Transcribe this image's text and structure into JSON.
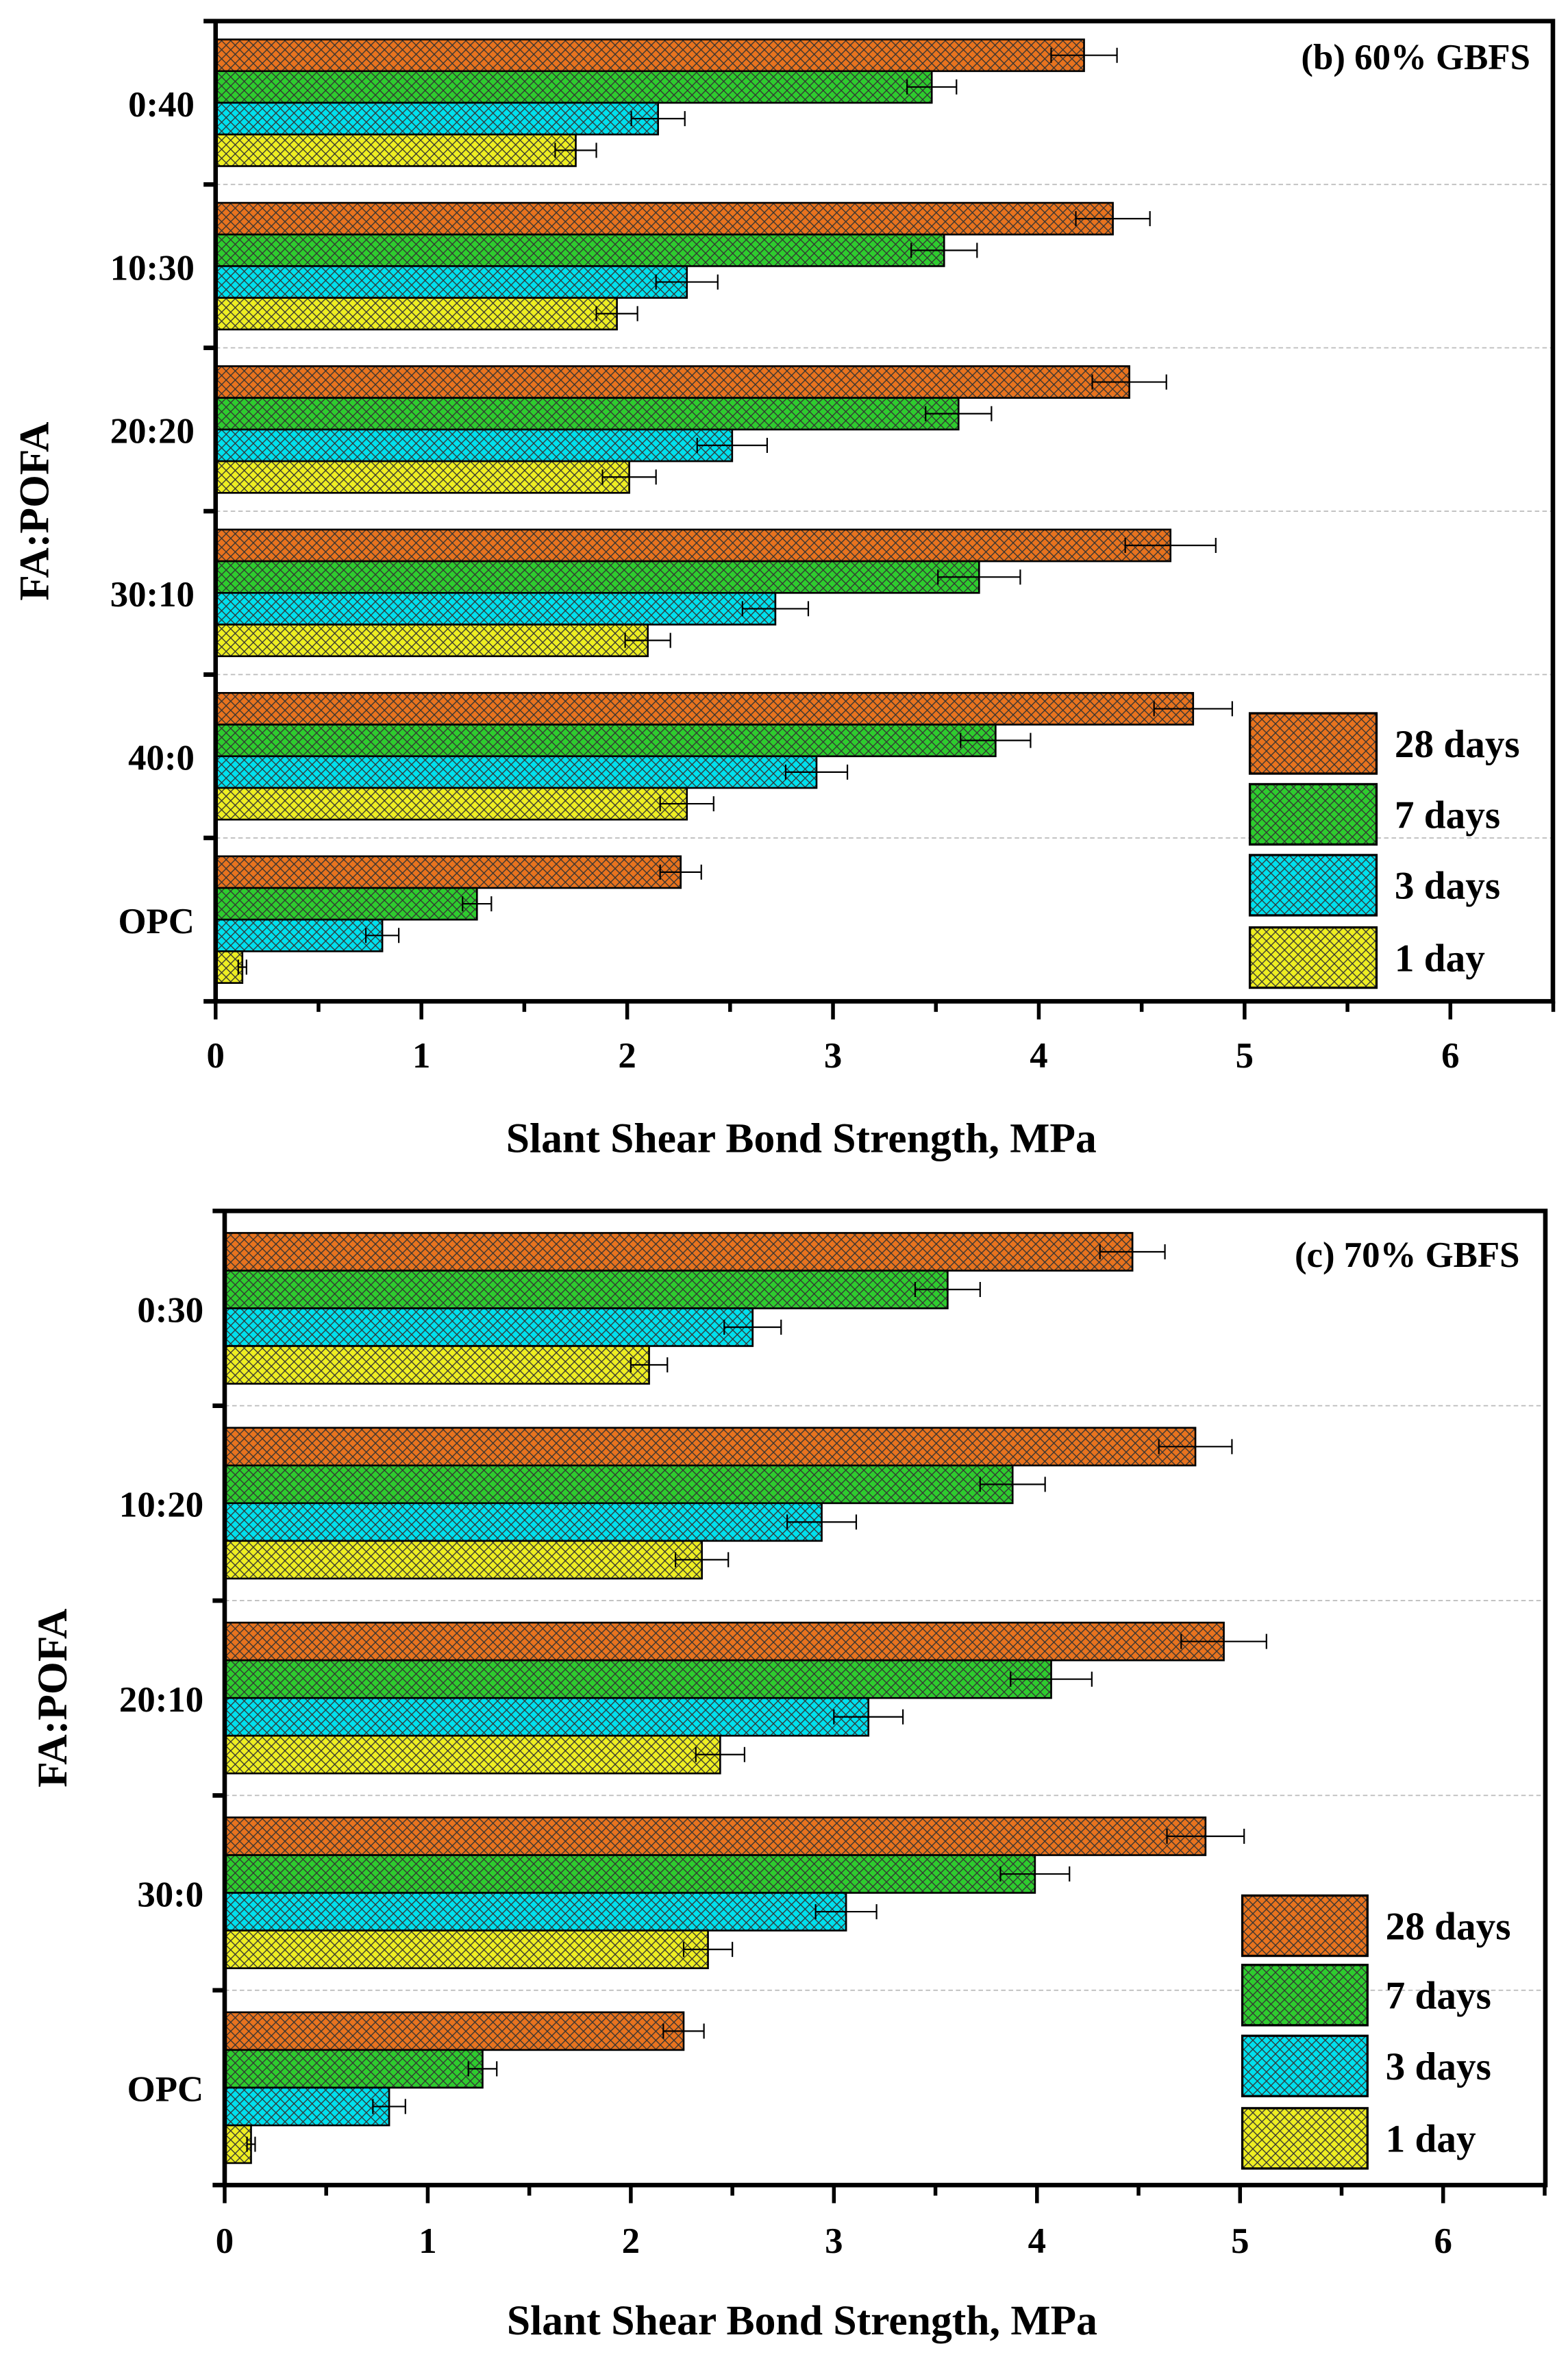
{
  "chart_data": [
    {
      "type": "bar",
      "orientation": "horizontal",
      "title": "(b) 60% GBFS",
      "xlabel": "Slant Shear Bond Strength, MPa",
      "ylabel": "FA:POFA",
      "xlim": [
        0,
        6.5
      ],
      "xticks": [
        "0",
        "1",
        "2",
        "3",
        "4",
        "5",
        "6"
      ],
      "categories": [
        "0:40",
        "10:30",
        "20:20",
        "30:10",
        "40:0",
        "OPC"
      ],
      "legend_position": "bottom-right",
      "series": [
        {
          "name": "28 days",
          "color": "#E8731E",
          "values": [
            4.22,
            4.36,
            4.44,
            4.64,
            4.75,
            2.26
          ],
          "errors": [
            0.16,
            0.18,
            0.18,
            0.22,
            0.19,
            0.1
          ]
        },
        {
          "name": "7 days",
          "color": "#2ECC2E",
          "values": [
            3.48,
            3.54,
            3.61,
            3.71,
            3.79,
            1.27
          ],
          "errors": [
            0.12,
            0.16,
            0.16,
            0.2,
            0.17,
            0.07
          ]
        },
        {
          "name": "3 days",
          "color": "#00E0EE",
          "values": [
            2.15,
            2.29,
            2.51,
            2.72,
            2.92,
            0.81
          ],
          "errors": [
            0.13,
            0.15,
            0.17,
            0.16,
            0.15,
            0.08
          ]
        },
        {
          "name": "1 day",
          "color": "#EEEE22",
          "values": [
            1.75,
            1.95,
            2.01,
            2.1,
            2.29,
            0.13
          ],
          "errors": [
            0.1,
            0.1,
            0.13,
            0.11,
            0.13,
            0.02
          ]
        }
      ]
    },
    {
      "type": "bar",
      "orientation": "horizontal",
      "title": "(c) 70% GBFS",
      "xlabel": "Slant Shear Bond Strength, MPa",
      "ylabel": "FA:POFA",
      "xlim": [
        0,
        6.5
      ],
      "xticks": [
        "0",
        "1",
        "2",
        "3",
        "4",
        "5",
        "6"
      ],
      "categories": [
        "0:30",
        "10:20",
        "20:10",
        "30:0",
        "OPC"
      ],
      "legend_position": "bottom-right",
      "series": [
        {
          "name": "28 days",
          "color": "#E8731E",
          "values": [
            4.47,
            4.78,
            4.92,
            4.83,
            2.26
          ],
          "errors": [
            0.16,
            0.18,
            0.21,
            0.19,
            0.1
          ]
        },
        {
          "name": "7 days",
          "color": "#2ECC2E",
          "values": [
            3.56,
            3.88,
            4.07,
            3.99,
            1.27
          ],
          "errors": [
            0.16,
            0.16,
            0.2,
            0.17,
            0.07
          ]
        },
        {
          "name": "3 days",
          "color": "#00E0EE",
          "values": [
            2.6,
            2.94,
            3.17,
            3.06,
            0.81
          ],
          "errors": [
            0.14,
            0.17,
            0.17,
            0.15,
            0.08
          ]
        },
        {
          "name": "1 day",
          "color": "#EEEE22",
          "values": [
            2.09,
            2.35,
            2.44,
            2.38,
            0.13
          ],
          "errors": [
            0.09,
            0.13,
            0.12,
            0.12,
            0.02
          ]
        }
      ]
    }
  ]
}
